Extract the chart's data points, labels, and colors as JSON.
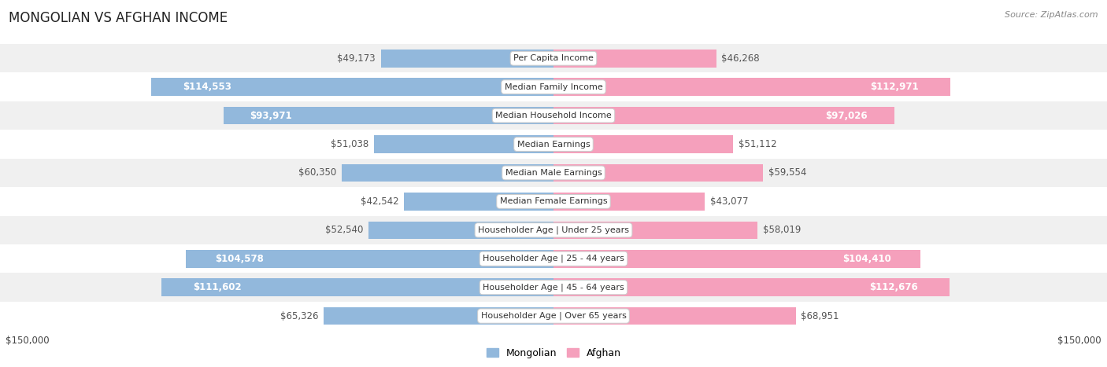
{
  "title": "MONGOLIAN VS AFGHAN INCOME",
  "source": "Source: ZipAtlas.com",
  "categories": [
    "Per Capita Income",
    "Median Family Income",
    "Median Household Income",
    "Median Earnings",
    "Median Male Earnings",
    "Median Female Earnings",
    "Householder Age | Under 25 years",
    "Householder Age | 25 - 44 years",
    "Householder Age | 45 - 64 years",
    "Householder Age | Over 65 years"
  ],
  "mongolian_values": [
    49173,
    114553,
    93971,
    51038,
    60350,
    42542,
    52540,
    104578,
    111602,
    65326
  ],
  "afghan_values": [
    46268,
    112971,
    97026,
    51112,
    59554,
    43077,
    58019,
    104410,
    112676,
    68951
  ],
  "mongolian_labels": [
    "$49,173",
    "$114,553",
    "$93,971",
    "$51,038",
    "$60,350",
    "$42,542",
    "$52,540",
    "$104,578",
    "$111,602",
    "$65,326"
  ],
  "afghan_labels": [
    "$46,268",
    "$112,971",
    "$97,026",
    "$51,112",
    "$59,554",
    "$43,077",
    "$58,019",
    "$104,410",
    "$112,676",
    "$68,951"
  ],
  "mongolian_color": "#92b8dc",
  "afghan_color": "#f5a0bc",
  "x_max": 150000,
  "x_label_left": "$150,000",
  "x_label_right": "$150,000",
  "bar_height": 0.62,
  "row_bg_colors": [
    "#f0f0f0",
    "#ffffff",
    "#f0f0f0",
    "#ffffff",
    "#f0f0f0",
    "#ffffff",
    "#f0f0f0",
    "#ffffff",
    "#f0f0f0",
    "#ffffff"
  ],
  "label_fontsize": 8.5,
  "category_fontsize": 8.0,
  "title_fontsize": 12,
  "source_fontsize": 8,
  "legend_fontsize": 9,
  "inside_threshold": 80000
}
